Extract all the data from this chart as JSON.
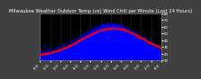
{
  "title": "Milwaukee Weather Outdoor Temp (vs) Wind Chill per Minute (Last 24 Hours)",
  "bg_color": "#404040",
  "plot_bg_color": "#000000",
  "border_color": "#808080",
  "line1_color": "#0000ff",
  "line2_color": "#ff0000",
  "line2_style": "--",
  "ylim": [
    10,
    80
  ],
  "ytick_values": [
    10,
    20,
    30,
    40,
    50,
    60,
    70,
    80
  ],
  "num_points": 1440,
  "grid_color": "#606060",
  "title_fontsize": 3.8,
  "tick_fontsize": 2.8,
  "title_color": "#ffffff",
  "tick_color": "#ffffff",
  "num_grid_lines": 5
}
